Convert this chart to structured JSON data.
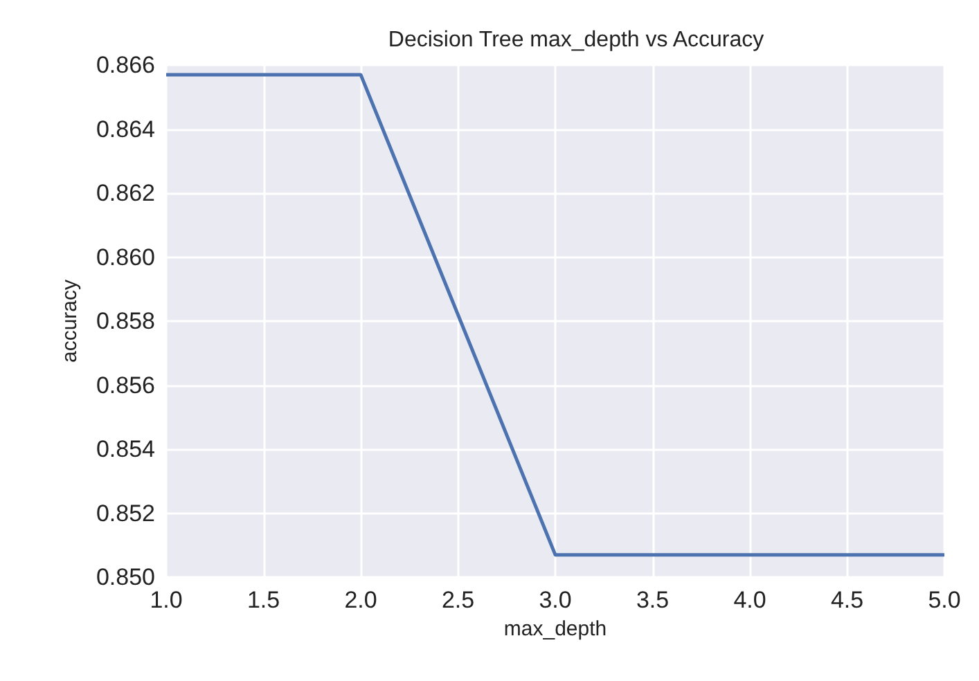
{
  "chart_data": {
    "type": "line",
    "title": "Decision Tree max_depth vs Accuracy",
    "xlabel": "max_depth",
    "ylabel": "accuracy",
    "x": [
      1,
      2,
      3,
      4,
      5
    ],
    "series": [
      {
        "color": "#4c72b0",
        "values": [
          0.8657,
          0.8657,
          0.8507,
          0.8507,
          0.8507
        ]
      }
    ],
    "xlim": [
      1,
      5
    ],
    "xticks": [
      {
        "value": 1,
        "label": "1.0"
      },
      {
        "value": 1.5,
        "label": "1.5"
      },
      {
        "value": 2,
        "label": "2.0"
      },
      {
        "value": 2.5,
        "label": "2.5"
      },
      {
        "value": 3,
        "label": "3.0"
      },
      {
        "value": 3.5,
        "label": "3.5"
      },
      {
        "value": 4,
        "label": "4.0"
      },
      {
        "value": 4.5,
        "label": "4.5"
      },
      {
        "value": 5,
        "label": "5.0"
      }
    ],
    "ylim": [
      0.85,
      0.866
    ],
    "yticks": [
      {
        "value": 0.85,
        "label": "0.850"
      },
      {
        "value": 0.852,
        "label": "0.852"
      },
      {
        "value": 0.854,
        "label": "0.854"
      },
      {
        "value": 0.856,
        "label": "0.856"
      },
      {
        "value": 0.858,
        "label": "0.858"
      },
      {
        "value": 0.86,
        "label": "0.860"
      },
      {
        "value": 0.862,
        "label": "0.862"
      },
      {
        "value": 0.864,
        "label": "0.864"
      },
      {
        "value": 0.866,
        "label": "0.866"
      }
    ],
    "grid": true,
    "line_style": "solid"
  }
}
